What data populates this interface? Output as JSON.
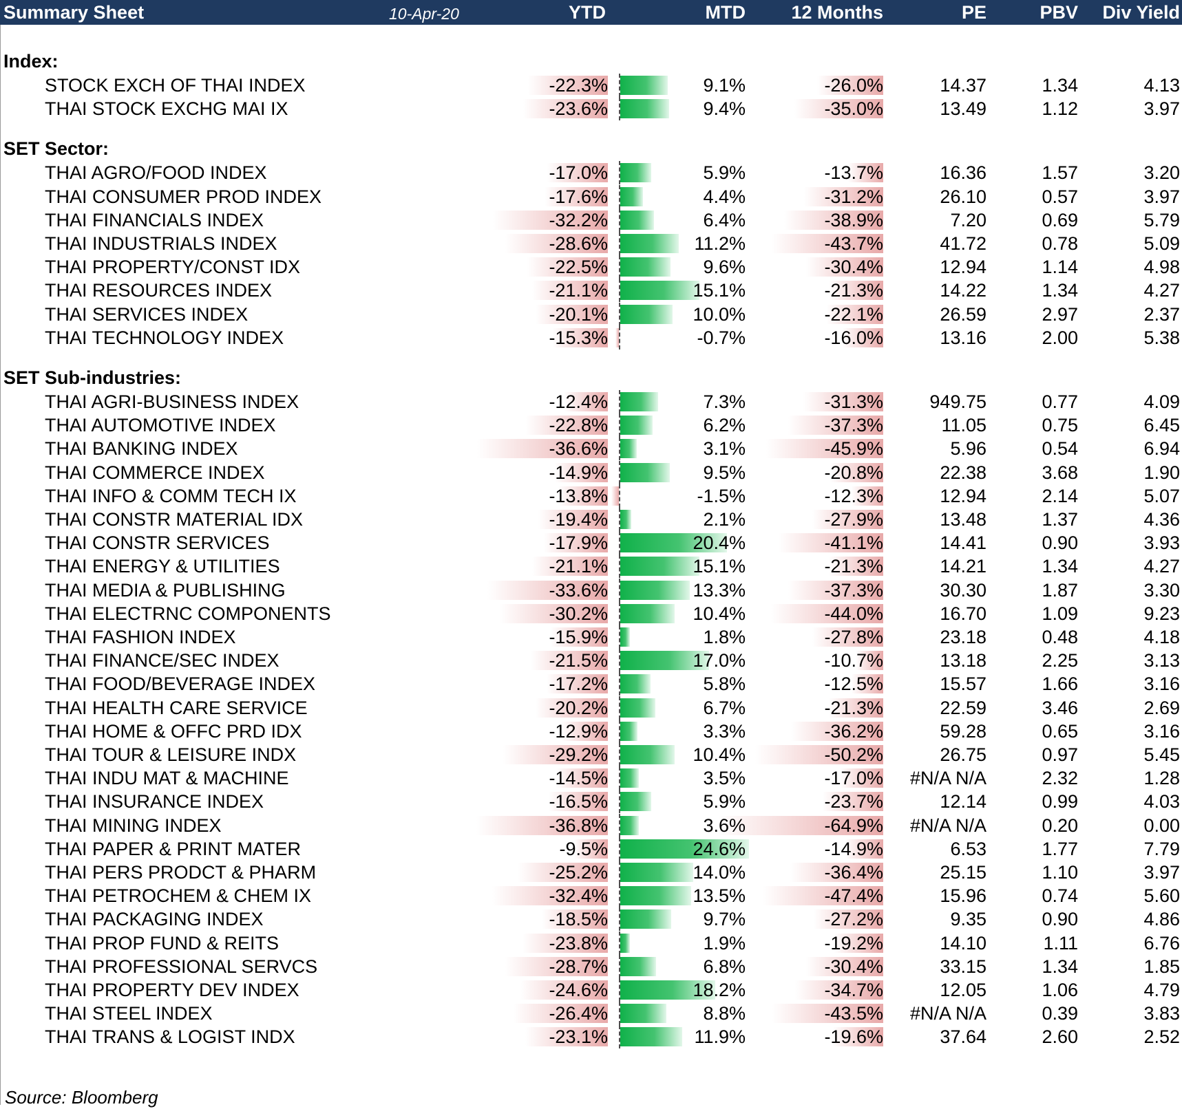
{
  "header": {
    "title": "Summary Sheet",
    "date": "10-Apr-20",
    "columns": {
      "ytd": "YTD",
      "mtd": "MTD",
      "m12": "12 Months",
      "pe": "PE",
      "pbv": "PBV",
      "div": "Div Yield"
    }
  },
  "colors": {
    "header_bg": "#1f3a60",
    "negative_bar": "#e8a9a9",
    "positive_bar": "#10b14a"
  },
  "sections": [
    {
      "label": "Index:",
      "rows": [
        {
          "name": "STOCK EXCH OF THAI INDEX",
          "ytd": -22.3,
          "ytd_label": "-22.3%",
          "mtd": 9.1,
          "mtd_label": "9.1%",
          "m12": -26.0,
          "m12_label": "-26.0%",
          "pe": "14.37",
          "pbv": "1.34",
          "div": "4.13"
        },
        {
          "name": "THAI STOCK EXCHG MAI IX",
          "ytd": -23.6,
          "ytd_label": "-23.6%",
          "mtd": 9.4,
          "mtd_label": "9.4%",
          "m12": -35.0,
          "m12_label": "-35.0%",
          "pe": "13.49",
          "pbv": "1.12",
          "div": "3.97"
        }
      ]
    },
    {
      "label": "SET Sector:",
      "rows": [
        {
          "name": "THAI AGRO/FOOD INDEX",
          "ytd": -17.0,
          "ytd_label": "-17.0%",
          "mtd": 5.9,
          "mtd_label": "5.9%",
          "m12": -13.7,
          "m12_label": "-13.7%",
          "pe": "16.36",
          "pbv": "1.57",
          "div": "3.20"
        },
        {
          "name": "THAI CONSUMER PROD INDEX",
          "ytd": -17.6,
          "ytd_label": "-17.6%",
          "mtd": 4.4,
          "mtd_label": "4.4%",
          "m12": -31.2,
          "m12_label": "-31.2%",
          "pe": "26.10",
          "pbv": "0.57",
          "div": "3.97"
        },
        {
          "name": "THAI FINANCIALS INDEX",
          "ytd": -32.2,
          "ytd_label": "-32.2%",
          "mtd": 6.4,
          "mtd_label": "6.4%",
          "m12": -38.9,
          "m12_label": "-38.9%",
          "pe": "7.20",
          "pbv": "0.69",
          "div": "5.79"
        },
        {
          "name": "THAI INDUSTRIALS INDEX",
          "ytd": -28.6,
          "ytd_label": "-28.6%",
          "mtd": 11.2,
          "mtd_label": "11.2%",
          "m12": -43.7,
          "m12_label": "-43.7%",
          "pe": "41.72",
          "pbv": "0.78",
          "div": "5.09"
        },
        {
          "name": "THAI PROPERTY/CONST IDX",
          "ytd": -22.5,
          "ytd_label": "-22.5%",
          "mtd": 9.6,
          "mtd_label": "9.6%",
          "m12": -30.4,
          "m12_label": "-30.4%",
          "pe": "12.94",
          "pbv": "1.14",
          "div": "4.98"
        },
        {
          "name": "THAI RESOURCES INDEX",
          "ytd": -21.1,
          "ytd_label": "-21.1%",
          "mtd": 15.1,
          "mtd_label": "15.1%",
          "m12": -21.3,
          "m12_label": "-21.3%",
          "pe": "14.22",
          "pbv": "1.34",
          "div": "4.27"
        },
        {
          "name": "THAI SERVICES INDEX",
          "ytd": -20.1,
          "ytd_label": "-20.1%",
          "mtd": 10.0,
          "mtd_label": "10.0%",
          "m12": -22.1,
          "m12_label": "-22.1%",
          "pe": "26.59",
          "pbv": "2.97",
          "div": "2.37"
        },
        {
          "name": "THAI TECHNOLOGY INDEX",
          "ytd": -15.3,
          "ytd_label": "-15.3%",
          "mtd": -0.7,
          "mtd_label": "-0.7%",
          "m12": -16.0,
          "m12_label": "-16.0%",
          "pe": "13.16",
          "pbv": "2.00",
          "div": "5.38"
        }
      ]
    },
    {
      "label": "SET Sub-industries:",
      "rows": [
        {
          "name": "THAI AGRI-BUSINESS INDEX",
          "ytd": -12.4,
          "ytd_label": "-12.4%",
          "mtd": 7.3,
          "mtd_label": "7.3%",
          "m12": -31.3,
          "m12_label": "-31.3%",
          "pe": "949.75",
          "pbv": "0.77",
          "div": "4.09"
        },
        {
          "name": "THAI AUTOMOTIVE INDEX",
          "ytd": -22.8,
          "ytd_label": "-22.8%",
          "mtd": 6.2,
          "mtd_label": "6.2%",
          "m12": -37.3,
          "m12_label": "-37.3%",
          "pe": "11.05",
          "pbv": "0.75",
          "div": "6.45"
        },
        {
          "name": "THAI BANKING INDEX",
          "ytd": -36.6,
          "ytd_label": "-36.6%",
          "mtd": 3.1,
          "mtd_label": "3.1%",
          "m12": -45.9,
          "m12_label": "-45.9%",
          "pe": "5.96",
          "pbv": "0.54",
          "div": "6.94"
        },
        {
          "name": "THAI COMMERCE INDEX",
          "ytd": -14.9,
          "ytd_label": "-14.9%",
          "mtd": 9.5,
          "mtd_label": "9.5%",
          "m12": -20.8,
          "m12_label": "-20.8%",
          "pe": "22.38",
          "pbv": "3.68",
          "div": "1.90"
        },
        {
          "name": "THAI INFO & COMM TECH IX",
          "ytd": -13.8,
          "ytd_label": "-13.8%",
          "mtd": -1.5,
          "mtd_label": "-1.5%",
          "m12": -12.3,
          "m12_label": "-12.3%",
          "pe": "12.94",
          "pbv": "2.14",
          "div": "5.07"
        },
        {
          "name": "THAI CONSTR MATERIAL IDX",
          "ytd": -19.4,
          "ytd_label": "-19.4%",
          "mtd": 2.1,
          "mtd_label": "2.1%",
          "m12": -27.9,
          "m12_label": "-27.9%",
          "pe": "13.48",
          "pbv": "1.37",
          "div": "4.36"
        },
        {
          "name": "THAI CONSTR SERVICES",
          "ytd": -17.9,
          "ytd_label": "-17.9%",
          "mtd": 20.4,
          "mtd_label": "20.4%",
          "m12": -41.1,
          "m12_label": "-41.1%",
          "pe": "14.41",
          "pbv": "0.90",
          "div": "3.93"
        },
        {
          "name": "THAI ENERGY & UTILITIES",
          "ytd": -21.1,
          "ytd_label": "-21.1%",
          "mtd": 15.1,
          "mtd_label": "15.1%",
          "m12": -21.3,
          "m12_label": "-21.3%",
          "pe": "14.21",
          "pbv": "1.34",
          "div": "4.27"
        },
        {
          "name": "THAI MEDIA & PUBLISHING",
          "ytd": -33.6,
          "ytd_label": "-33.6%",
          "mtd": 13.3,
          "mtd_label": "13.3%",
          "m12": -37.3,
          "m12_label": "-37.3%",
          "pe": "30.30",
          "pbv": "1.87",
          "div": "3.30"
        },
        {
          "name": "THAI ELECTRNC COMPONENTS",
          "ytd": -30.2,
          "ytd_label": "-30.2%",
          "mtd": 10.4,
          "mtd_label": "10.4%",
          "m12": -44.0,
          "m12_label": "-44.0%",
          "pe": "16.70",
          "pbv": "1.09",
          "div": "9.23"
        },
        {
          "name": "THAI FASHION INDEX",
          "ytd": -15.9,
          "ytd_label": "-15.9%",
          "mtd": 1.8,
          "mtd_label": "1.8%",
          "m12": -27.8,
          "m12_label": "-27.8%",
          "pe": "23.18",
          "pbv": "0.48",
          "div": "4.18"
        },
        {
          "name": "THAI FINANCE/SEC INDEX",
          "ytd": -21.5,
          "ytd_label": "-21.5%",
          "mtd": 17.0,
          "mtd_label": "17.0%",
          "m12": -10.7,
          "m12_label": "-10.7%",
          "pe": "13.18",
          "pbv": "2.25",
          "div": "3.13"
        },
        {
          "name": "THAI FOOD/BEVERAGE INDEX",
          "ytd": -17.2,
          "ytd_label": "-17.2%",
          "mtd": 5.8,
          "mtd_label": "5.8%",
          "m12": -12.5,
          "m12_label": "-12.5%",
          "pe": "15.57",
          "pbv": "1.66",
          "div": "3.16"
        },
        {
          "name": "THAI HEALTH CARE SERVICE",
          "ytd": -20.2,
          "ytd_label": "-20.2%",
          "mtd": 6.7,
          "mtd_label": "6.7%",
          "m12": -21.3,
          "m12_label": "-21.3%",
          "pe": "22.59",
          "pbv": "3.46",
          "div": "2.69"
        },
        {
          "name": "THAI HOME & OFFC PRD IDX",
          "ytd": -12.9,
          "ytd_label": "-12.9%",
          "mtd": 3.3,
          "mtd_label": "3.3%",
          "m12": -36.2,
          "m12_label": "-36.2%",
          "pe": "59.28",
          "pbv": "0.65",
          "div": "3.16"
        },
        {
          "name": "THAI TOUR & LEISURE INDX",
          "ytd": -29.2,
          "ytd_label": "-29.2%",
          "mtd": 10.4,
          "mtd_label": "10.4%",
          "m12": -50.2,
          "m12_label": "-50.2%",
          "pe": "26.75",
          "pbv": "0.97",
          "div": "5.45"
        },
        {
          "name": "THAI INDU MAT & MACHINE",
          "ytd": -14.5,
          "ytd_label": "-14.5%",
          "mtd": 3.5,
          "mtd_label": "3.5%",
          "m12": -17.0,
          "m12_label": "-17.0%",
          "pe": "#N/A N/A",
          "pbv": "2.32",
          "div": "1.28"
        },
        {
          "name": "THAI INSURANCE INDEX",
          "ytd": -16.5,
          "ytd_label": "-16.5%",
          "mtd": 5.9,
          "mtd_label": "5.9%",
          "m12": -23.7,
          "m12_label": "-23.7%",
          "pe": "12.14",
          "pbv": "0.99",
          "div": "4.03"
        },
        {
          "name": "THAI MINING INDEX",
          "ytd": -36.8,
          "ytd_label": "-36.8%",
          "mtd": 3.6,
          "mtd_label": "3.6%",
          "m12": -64.9,
          "m12_label": "-64.9%",
          "pe": "#N/A N/A",
          "pbv": "0.20",
          "div": "0.00"
        },
        {
          "name": "THAI PAPER & PRINT MATER",
          "ytd": -9.5,
          "ytd_label": "-9.5%",
          "mtd": 24.6,
          "mtd_label": "24.6%",
          "m12": -14.9,
          "m12_label": "-14.9%",
          "pe": "6.53",
          "pbv": "1.77",
          "div": "7.79"
        },
        {
          "name": "THAI PERS PRODCT & PHARM",
          "ytd": -25.2,
          "ytd_label": "-25.2%",
          "mtd": 14.0,
          "mtd_label": "14.0%",
          "m12": -36.4,
          "m12_label": "-36.4%",
          "pe": "25.15",
          "pbv": "1.10",
          "div": "3.97"
        },
        {
          "name": "THAI PETROCHEM & CHEM IX",
          "ytd": -32.4,
          "ytd_label": "-32.4%",
          "mtd": 13.5,
          "mtd_label": "13.5%",
          "m12": -47.4,
          "m12_label": "-47.4%",
          "pe": "15.96",
          "pbv": "0.74",
          "div": "5.60"
        },
        {
          "name": "THAI PACKAGING INDEX",
          "ytd": -18.5,
          "ytd_label": "-18.5%",
          "mtd": 9.7,
          "mtd_label": "9.7%",
          "m12": -27.2,
          "m12_label": "-27.2%",
          "pe": "9.35",
          "pbv": "0.90",
          "div": "4.86"
        },
        {
          "name": "THAI PROP FUND & REITS",
          "ytd": -23.8,
          "ytd_label": "-23.8%",
          "mtd": 1.9,
          "mtd_label": "1.9%",
          "m12": -19.2,
          "m12_label": "-19.2%",
          "pe": "14.10",
          "pbv": "1.11",
          "div": "6.76"
        },
        {
          "name": "THAI PROFESSIONAL SERVCS",
          "ytd": -28.7,
          "ytd_label": "-28.7%",
          "mtd": 6.8,
          "mtd_label": "6.8%",
          "m12": -30.4,
          "m12_label": "-30.4%",
          "pe": "33.15",
          "pbv": "1.34",
          "div": "1.85"
        },
        {
          "name": "THAI PROPERTY DEV INDEX",
          "ytd": -24.6,
          "ytd_label": "-24.6%",
          "mtd": 18.2,
          "mtd_label": "18.2%",
          "m12": -34.7,
          "m12_label": "-34.7%",
          "pe": "12.05",
          "pbv": "1.06",
          "div": "4.79"
        },
        {
          "name": "THAI STEEL INDEX",
          "ytd": -26.4,
          "ytd_label": "-26.4%",
          "mtd": 8.8,
          "mtd_label": "8.8%",
          "m12": -43.5,
          "m12_label": "-43.5%",
          "pe": "#N/A N/A",
          "pbv": "0.39",
          "div": "3.83"
        },
        {
          "name": "THAI TRANS & LOGIST INDX",
          "ytd": -23.1,
          "ytd_label": "-23.1%",
          "mtd": 11.9,
          "mtd_label": "11.9%",
          "m12": -19.6,
          "m12_label": "-19.6%",
          "pe": "37.64",
          "pbv": "2.60",
          "div": "2.52"
        }
      ]
    }
  ],
  "footer": {
    "source": "Source: Bloomberg"
  }
}
